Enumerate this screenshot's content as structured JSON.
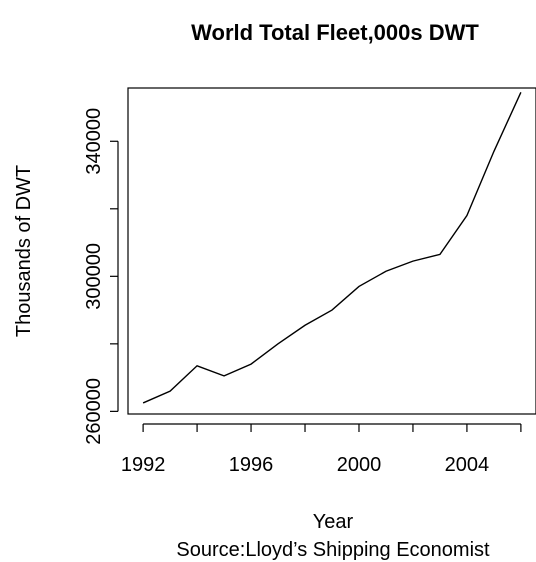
{
  "chart_data": {
    "type": "line",
    "title": "World Total Fleet,000s DWT",
    "xlabel": "Year",
    "ylabel": "Thousands of DWT",
    "source": "Source:Lloyd’s Shipping Economist",
    "x": [
      1992,
      1993,
      1994,
      1995,
      1996,
      1997,
      1998,
      1999,
      2000,
      2001,
      2002,
      2003,
      2004,
      2005,
      2006
    ],
    "series": [
      {
        "values": [
          262500,
          266000,
          273500,
          270500,
          274000,
          280000,
          285500,
          290000,
          297000,
          301500,
          304500,
          306500,
          318000,
          337000,
          354500
        ]
      }
    ],
    "xlim": [
      1991.44,
      2006.56
    ],
    "ylim": [
      259220,
      355780
    ],
    "x_ticks": [
      1992,
      1994,
      1996,
      1998,
      2000,
      2002,
      2004,
      2006
    ],
    "x_tick_labels": [
      "1992",
      "",
      "1996",
      "",
      "2000",
      "",
      "2004",
      ""
    ],
    "y_ticks": [
      260000,
      280000,
      300000,
      320000,
      340000
    ],
    "y_tick_labels": [
      "260000",
      "",
      "300000",
      "",
      "340000"
    ],
    "grid": false,
    "legend": "none",
    "line_color": "#000000"
  }
}
